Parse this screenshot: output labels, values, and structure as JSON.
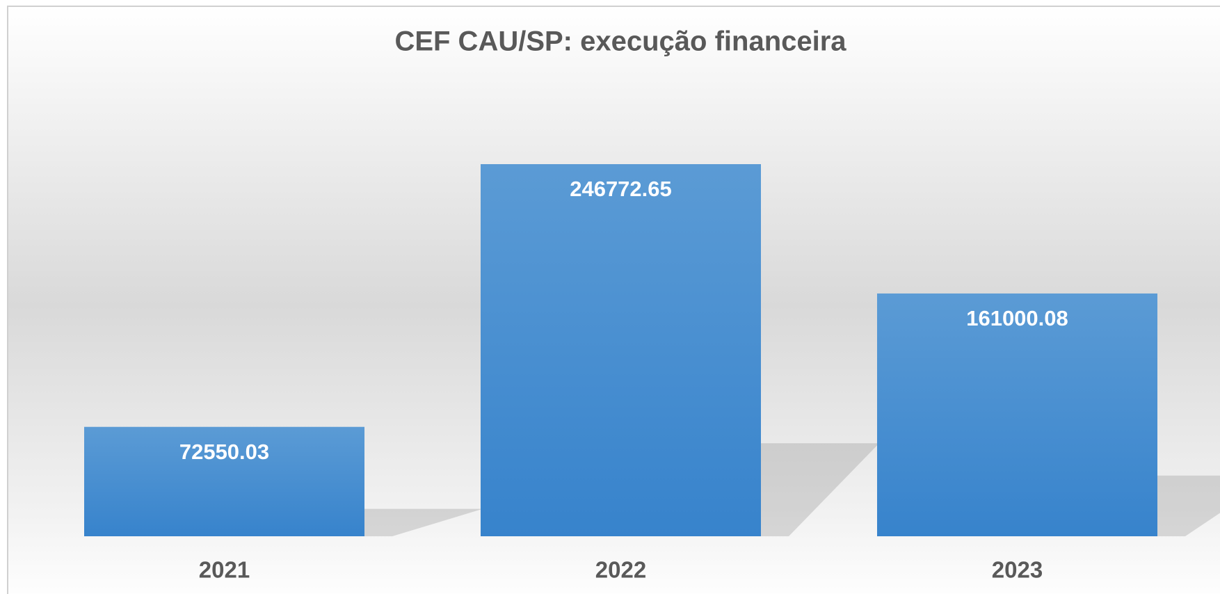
{
  "chart_data": {
    "type": "bar",
    "title": "CEF CAU/SP: execução financeira",
    "categories": [
      "2021",
      "2022",
      "2023"
    ],
    "values": [
      72550.03,
      246772.65,
      161000.08
    ],
    "color": "#4a8fd4"
  }
}
